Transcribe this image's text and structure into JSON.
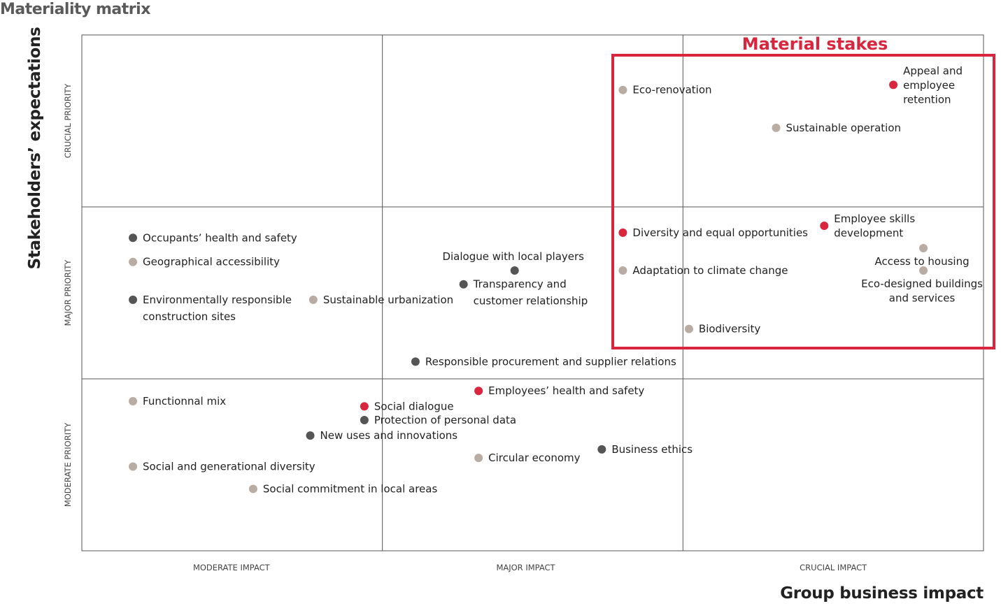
{
  "title": "Materiality matrix",
  "chart_data": {
    "type": "scatter",
    "title": "Materiality matrix",
    "xlabel": "Group business impact",
    "ylabel": "Stakeholders’ expectations",
    "xlim": [
      0,
      3
    ],
    "ylim": [
      0,
      3
    ],
    "x_tick_labels": [
      "MODERATE IMPACT",
      "MAJOR IMPACT",
      "CRUCIAL IMPACT"
    ],
    "y_tick_labels": [
      "MODERATE PRIORITY",
      "MAJOR PRIORITY",
      "CRUCIAL PRIORITY"
    ],
    "grid": true,
    "highlight_box_label": "Material stakes",
    "colors": {
      "material": "#d7263d",
      "beige": "#b9aca2",
      "dark": "#555555",
      "box": "#d7263d"
    },
    "points": [
      {
        "label": [
          "Eco-renovation"
        ],
        "x": 1.8,
        "y": 2.68,
        "color": "#b9aca2",
        "label_position": "right"
      },
      {
        "label": [
          "Appeal and",
          "employee",
          "retention"
        ],
        "x": 2.7,
        "y": 2.71,
        "color": "#d7263d",
        "label_position": "right"
      },
      {
        "label": [
          "Sustainable operation"
        ],
        "x": 2.31,
        "y": 2.46,
        "color": "#b9aca2",
        "label_position": "right"
      },
      {
        "label": [
          "Diversity and equal opportunities"
        ],
        "x": 1.8,
        "y": 1.85,
        "color": "#d7263d",
        "label_position": "right"
      },
      {
        "label": [
          "Employee skills",
          "development"
        ],
        "x": 2.47,
        "y": 1.89,
        "color": "#d7263d",
        "label_position": "right"
      },
      {
        "label": [
          "Access to housing"
        ],
        "x": 2.8,
        "y": 1.76,
        "color": "#b9aca2",
        "label_position": "below"
      },
      {
        "label": [
          "Eco-designed buildings",
          "and services"
        ],
        "x": 2.8,
        "y": 1.63,
        "color": "#b9aca2",
        "label_position": "below"
      },
      {
        "label": [
          "Adaptation to climate change"
        ],
        "x": 1.8,
        "y": 1.63,
        "color": "#b9aca2",
        "label_position": "right"
      },
      {
        "label": [
          "Biodiversity"
        ],
        "x": 2.02,
        "y": 1.29,
        "color": "#b9aca2",
        "label_position": "right"
      },
      {
        "label": [
          "Occupants’ health and safety"
        ],
        "x": 0.17,
        "y": 1.82,
        "color": "#555555",
        "label_position": "right"
      },
      {
        "label": [
          "Geographical accessibility"
        ],
        "x": 0.17,
        "y": 1.68,
        "color": "#b9aca2",
        "label_position": "right"
      },
      {
        "label": [
          "Environmentally responsible",
          "construction sites"
        ],
        "x": 0.17,
        "y": 1.46,
        "color": "#555555",
        "label_position": "right"
      },
      {
        "label": [
          "Sustainable urbanization"
        ],
        "x": 0.77,
        "y": 1.46,
        "color": "#b9aca2",
        "label_position": "right"
      },
      {
        "label": [
          "Dialogue with local players"
        ],
        "x": 1.44,
        "y": 1.63,
        "color": "#555555",
        "label_position": "above"
      },
      {
        "label": [
          "Transparency and",
          "customer relationship"
        ],
        "x": 1.27,
        "y": 1.55,
        "color": "#555555",
        "label_position": "right"
      },
      {
        "label": [
          "Responsible procurement and supplier relations"
        ],
        "x": 1.11,
        "y": 1.1,
        "color": "#555555",
        "label_position": "right"
      },
      {
        "label": [
          "Employees’ health and safety"
        ],
        "x": 1.32,
        "y": 0.93,
        "color": "#d7263d",
        "label_position": "right"
      },
      {
        "label": [
          "Functionnal mix"
        ],
        "x": 0.17,
        "y": 0.87,
        "color": "#b9aca2",
        "label_position": "right"
      },
      {
        "label": [
          "Social dialogue"
        ],
        "x": 0.94,
        "y": 0.84,
        "color": "#d7263d",
        "label_position": "right"
      },
      {
        "label": [
          "Protection of personal data"
        ],
        "x": 0.94,
        "y": 0.76,
        "color": "#555555",
        "label_position": "right"
      },
      {
        "label": [
          "New uses and innovations"
        ],
        "x": 0.76,
        "y": 0.67,
        "color": "#555555",
        "label_position": "right"
      },
      {
        "label": [
          "Business ethics"
        ],
        "x": 1.73,
        "y": 0.59,
        "color": "#555555",
        "label_position": "right"
      },
      {
        "label": [
          "Circular economy"
        ],
        "x": 1.32,
        "y": 0.54,
        "color": "#b9aca2",
        "label_position": "right"
      },
      {
        "label": [
          "Social and generational diversity"
        ],
        "x": 0.17,
        "y": 0.49,
        "color": "#b9aca2",
        "label_position": "right"
      },
      {
        "label": [
          "Social commitment in local areas"
        ],
        "x": 0.57,
        "y": 0.36,
        "color": "#b9aca2",
        "label_position": "right"
      }
    ]
  }
}
